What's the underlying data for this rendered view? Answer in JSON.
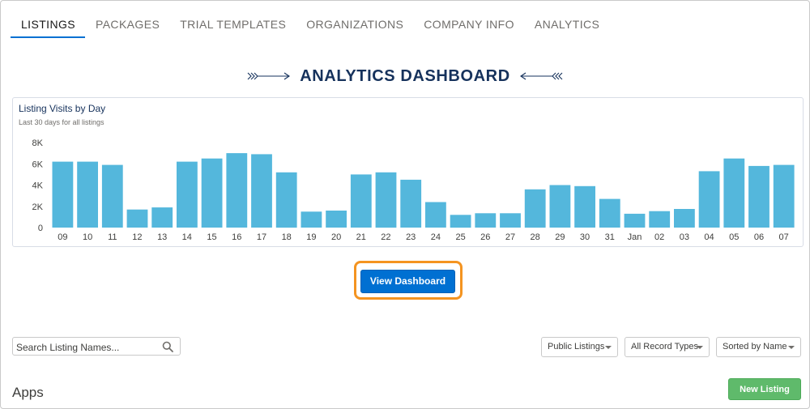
{
  "tabs": [
    {
      "label": "LISTINGS",
      "active": true
    },
    {
      "label": "PACKAGES",
      "active": false
    },
    {
      "label": "TRIAL TEMPLATES",
      "active": false
    },
    {
      "label": "ORGANIZATIONS",
      "active": false
    },
    {
      "label": "COMPANY INFO",
      "active": false
    },
    {
      "label": "ANALYTICS",
      "active": false
    }
  ],
  "dashboard": {
    "title": "ANALYTICS DASHBOARD",
    "view_button": "View Dashboard",
    "highlight_color": "#f49421"
  },
  "chart_data": {
    "type": "bar",
    "title": "Listing Visits by Day",
    "subtitle": "Last 30 days for all listings",
    "categories": [
      "09",
      "10",
      "11",
      "12",
      "13",
      "14",
      "15",
      "16",
      "17",
      "18",
      "19",
      "20",
      "21",
      "22",
      "23",
      "24",
      "25",
      "26",
      "27",
      "28",
      "29",
      "30",
      "31",
      "Jan",
      "02",
      "03",
      "04",
      "05",
      "06",
      "07"
    ],
    "values": [
      6200,
      6200,
      5900,
      1700,
      1900,
      6200,
      6500,
      7000,
      6900,
      5200,
      1500,
      1600,
      5000,
      5200,
      4500,
      2400,
      1200,
      1350,
      1350,
      3600,
      4000,
      3900,
      2700,
      1300,
      1550,
      1750,
      5300,
      6500,
      5800,
      5900
    ],
    "yticks": [
      "8K",
      "6K",
      "4K",
      "2K",
      "0"
    ],
    "ylim": [
      0,
      8000
    ],
    "bar_color": "#54b7dc",
    "grid": false
  },
  "search": {
    "placeholder": "Search Listing Names..."
  },
  "filters": [
    {
      "label": "Public Listings"
    },
    {
      "label": "All Record Types"
    },
    {
      "label": "Sorted by Name"
    }
  ],
  "apps": {
    "heading": "Apps",
    "new_button": "New Listing"
  },
  "icons": {
    "search": "search-icon",
    "dropdown": "chevron-down-icon"
  }
}
